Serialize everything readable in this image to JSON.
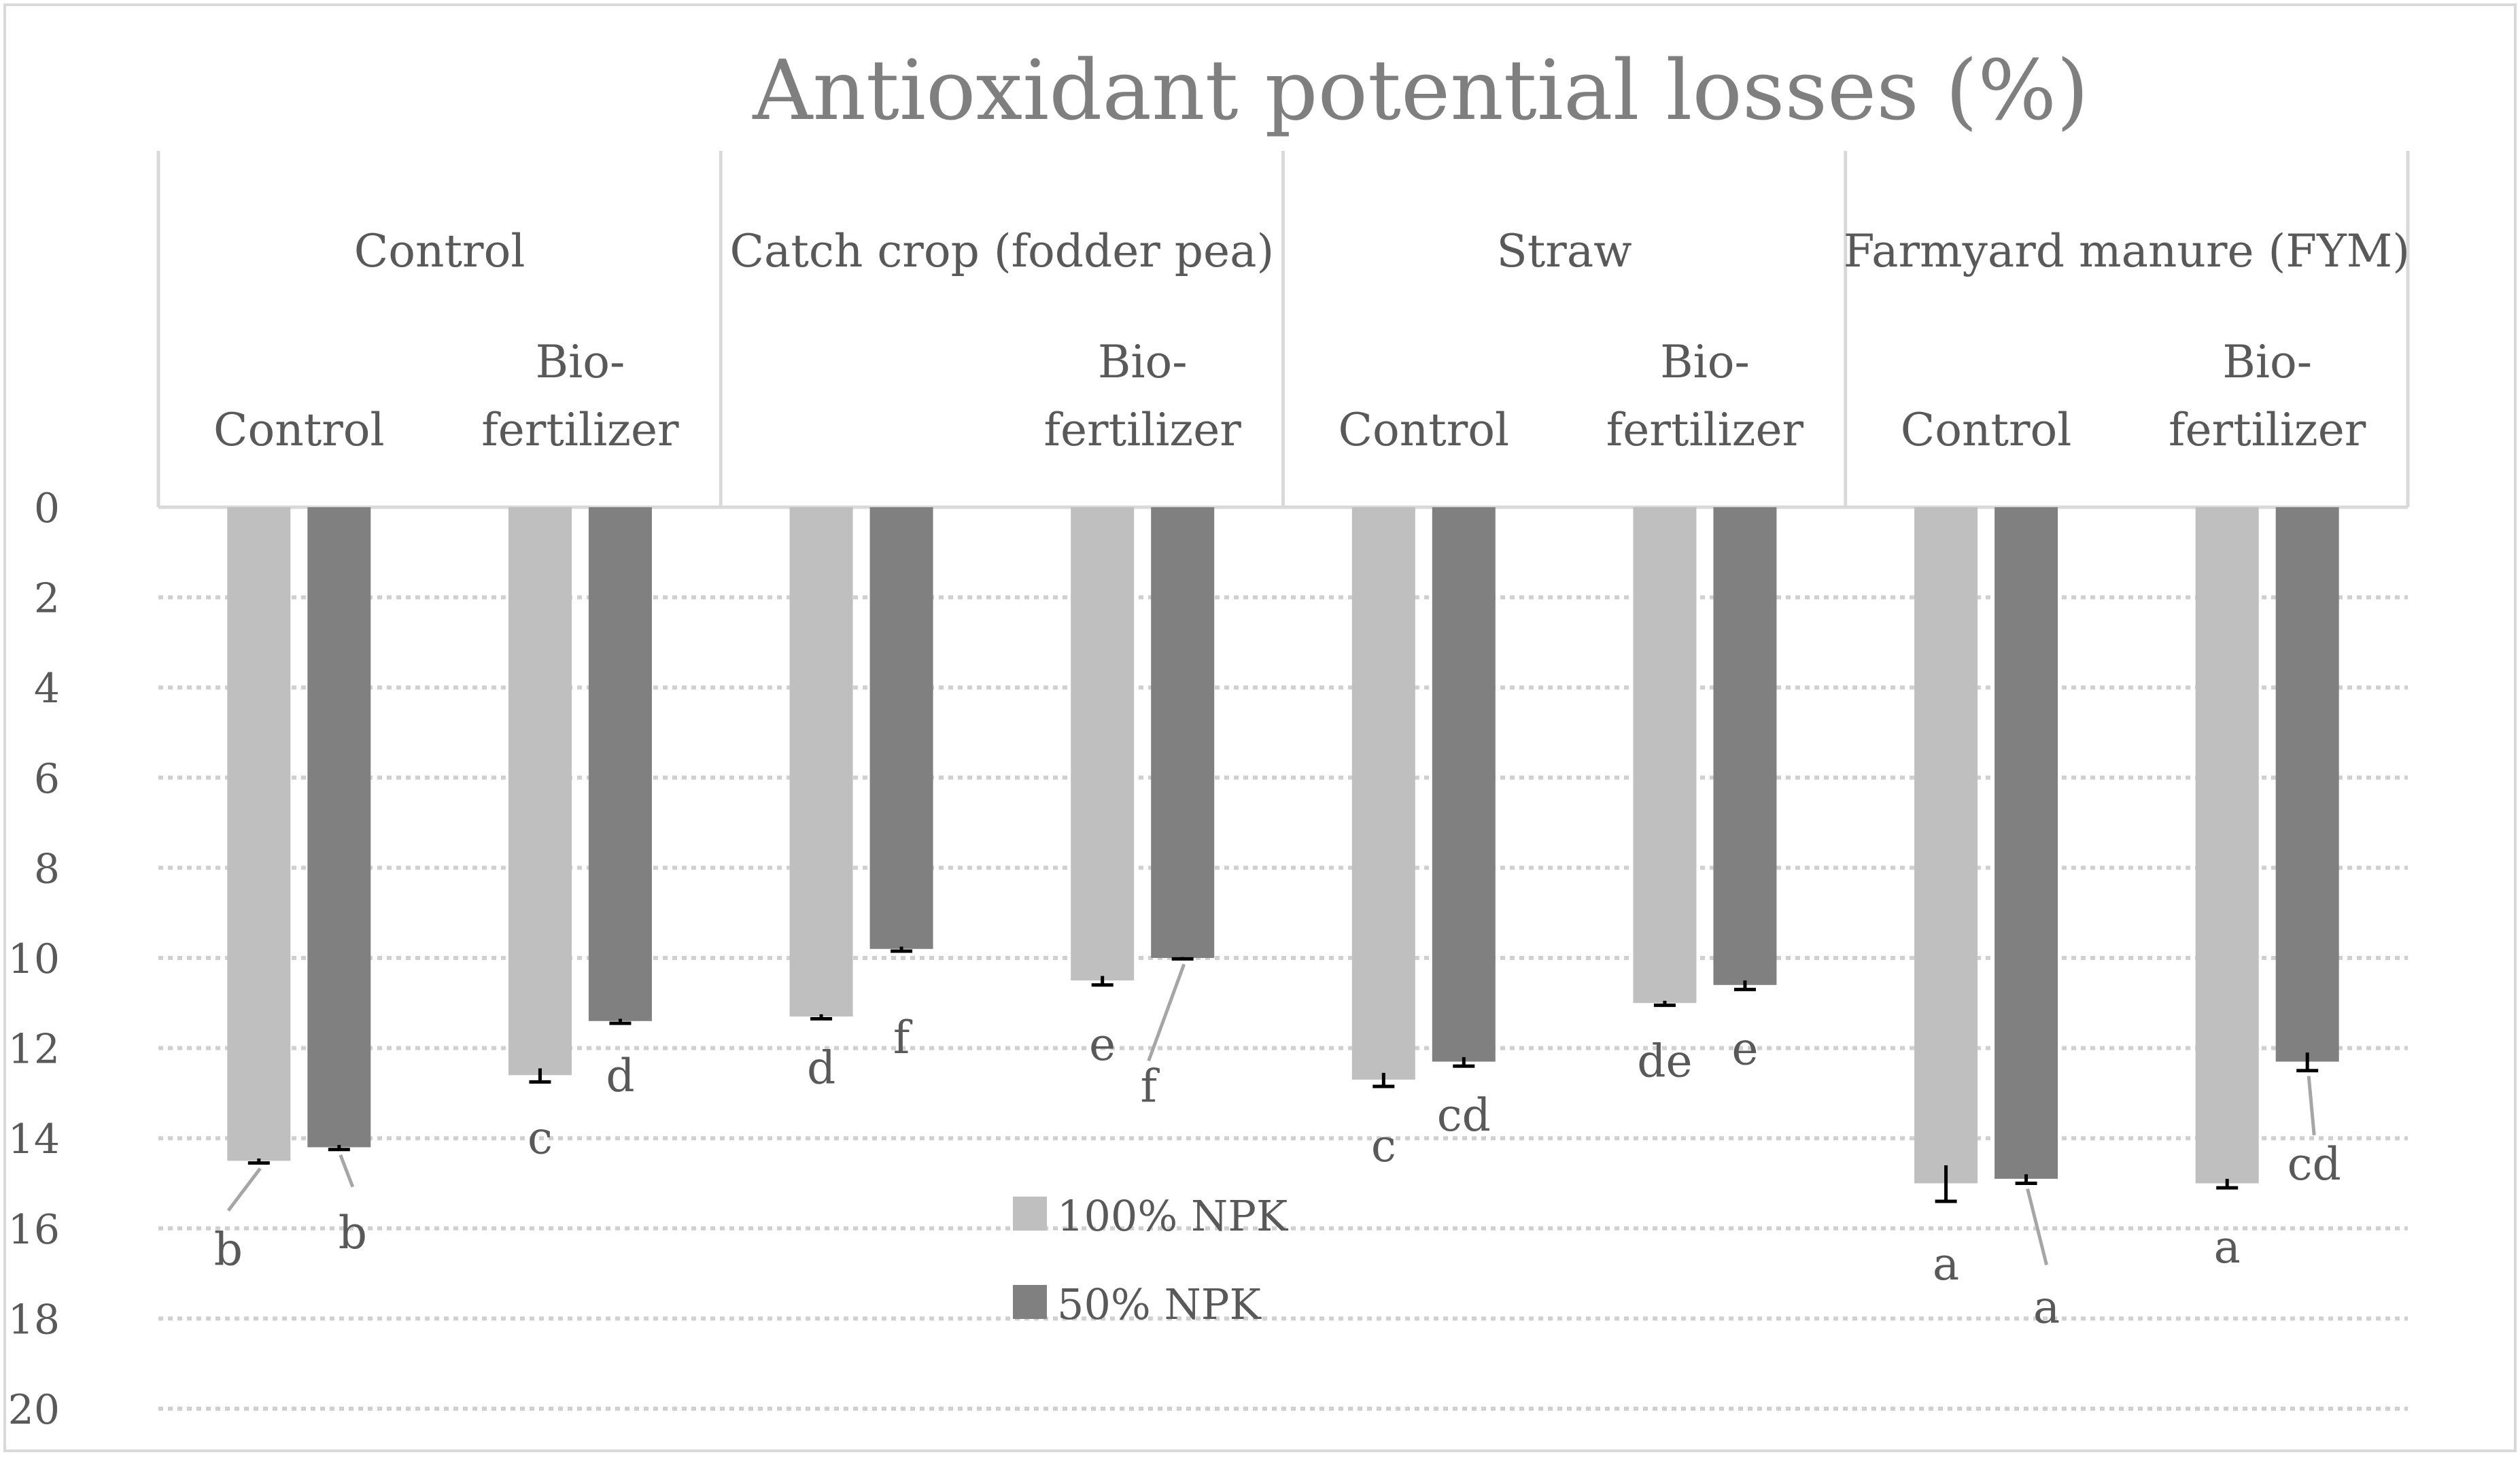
{
  "chart_data": {
    "type": "bar",
    "title": "Antioxidant potential losses (%)",
    "orientation": "vertical-inverted",
    "ylim": [
      0,
      20
    ],
    "yticks": [
      "0",
      "2",
      "4",
      "6",
      "8",
      "10",
      "12",
      "14",
      "16",
      "18",
      "20"
    ],
    "grid": true,
    "groups": [
      {
        "label": "Control",
        "subcategories": [
          "Control",
          "Bio-fertilizer"
        ]
      },
      {
        "label": "Catch crop (fodder pea)",
        "subcategories": [
          "",
          "Bio-fertilizer"
        ]
      },
      {
        "label": "Straw",
        "subcategories": [
          "Control",
          "Bio-fertilizer"
        ]
      },
      {
        "label": "Farmyard manure (FYM)",
        "subcategories": [
          "Control",
          "Bio-fertilizer"
        ]
      }
    ],
    "series": [
      {
        "name": "100% NPK",
        "color": "#bfbfbf",
        "values": [
          14.5,
          12.6,
          11.3,
          10.5,
          12.7,
          11.0,
          15.0,
          15.0
        ],
        "errors": [
          0.05,
          0.15,
          0.05,
          0.1,
          0.15,
          0.05,
          0.4,
          0.1
        ],
        "letters": [
          "b",
          "c",
          "d",
          "e",
          "c",
          "de",
          "a",
          "a"
        ]
      },
      {
        "name": "50% NPK",
        "color": "#808080",
        "values": [
          14.2,
          11.4,
          9.8,
          10.0,
          12.3,
          10.6,
          14.9,
          12.3
        ],
        "errors": [
          0.05,
          0.05,
          0.05,
          0.02,
          0.1,
          0.1,
          0.1,
          0.2
        ],
        "letters": [
          "b",
          "d",
          "f",
          "f",
          "cd",
          "e",
          "a",
          "cd"
        ]
      }
    ],
    "legend": {
      "position": "bottom-center",
      "entries": [
        "100% NPK",
        "50% NPK"
      ]
    }
  }
}
